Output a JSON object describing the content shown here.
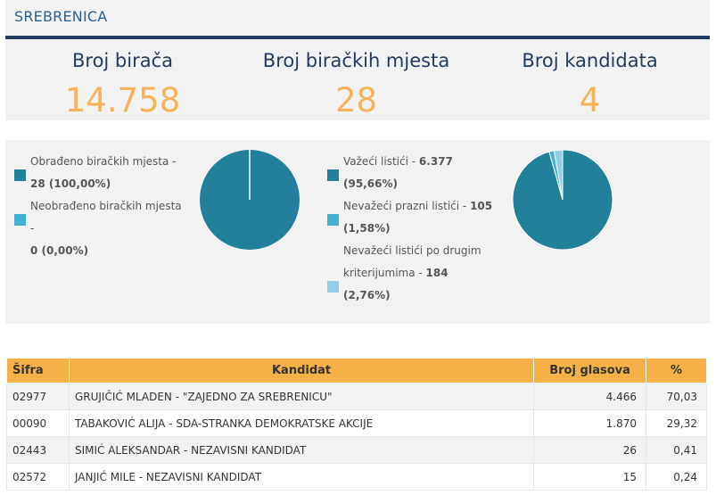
{
  "header": {
    "title": "SREBRENICA"
  },
  "stats": [
    {
      "label": "Broj birača",
      "value": "14.758"
    },
    {
      "label": "Broj biračkih mjesta",
      "value": "28"
    },
    {
      "label": "Broj kandidata",
      "value": "4"
    }
  ],
  "colors": {
    "dark_teal": "#22809a",
    "mid_blue": "#45b0d6",
    "light_blue": "#8fd0e6",
    "accent_orange": "#f5b359",
    "navy": "#1f3b5f"
  },
  "chart_data": [
    {
      "type": "pie",
      "series": [
        {
          "name": "Obrađeno biračkih mjesta",
          "count": "28",
          "percent": "100,00%",
          "value": 100.0,
          "color": "#22809a"
        },
        {
          "name": "Neobrađeno biračkih mjesta",
          "count": "0",
          "percent": "0,00%",
          "value": 0.0,
          "color": "#45b0d6"
        }
      ]
    },
    {
      "type": "pie",
      "series": [
        {
          "name": "Važeći listići",
          "count": "6.377",
          "percent": "95,66%",
          "value": 95.66,
          "color": "#22809a"
        },
        {
          "name": "Nevažeći prazni listići",
          "count": "105",
          "percent": "1,58%",
          "value": 1.58,
          "color": "#45b0d6"
        },
        {
          "name": "Nevažeći listići po drugim kriterijumima",
          "count": "184",
          "percent": "2,76%",
          "value": 2.76,
          "color": "#8fd0e6"
        }
      ]
    }
  ],
  "legend1": [
    {
      "line1": "Obrađeno biračkih mjesta -",
      "line2": "28 (100,00%)"
    },
    {
      "line1": "Neobrađeno biračkih mjesta -",
      "line2": "0 (0,00%)"
    }
  ],
  "legend2": [
    {
      "line1": "Važeći listići - ",
      "line1_bold": "6.377",
      "line2": "(95,66%)"
    },
    {
      "line1": "Nevažeći prazni listići - ",
      "line1_bold": "105",
      "line2": "(1,58%)"
    },
    {
      "line0": "Nevažeći listići po drugim",
      "line1": "kriterijumima - ",
      "line1_bold": "184",
      "line2": "(2,76%)"
    }
  ],
  "table": {
    "headers": [
      "Šifra",
      "Kandidat",
      "Broj glasova",
      "%"
    ],
    "rows": [
      {
        "sifra": "02977",
        "kandidat": "GRUJIČIĆ MLADEN - \"ZAJEDNO ZA SREBRENICU\"",
        "glasova": "4.466",
        "procenat": "70,03"
      },
      {
        "sifra": "00090",
        "kandidat": "TABAKOVIĆ ALIJA - SDA-STRANKA DEMOKRATSKE AKCIJE",
        "glasova": "1.870",
        "procenat": "29,32"
      },
      {
        "sifra": "02443",
        "kandidat": "SIMIĆ ALEKSANDAR - NEZAVISNI KANDIDAT",
        "glasova": "26",
        "procenat": "0,41"
      },
      {
        "sifra": "02572",
        "kandidat": "JANJIĆ MILE - NEZAVISNI KANDIDAT",
        "glasova": "15",
        "procenat": "0,24"
      }
    ]
  }
}
